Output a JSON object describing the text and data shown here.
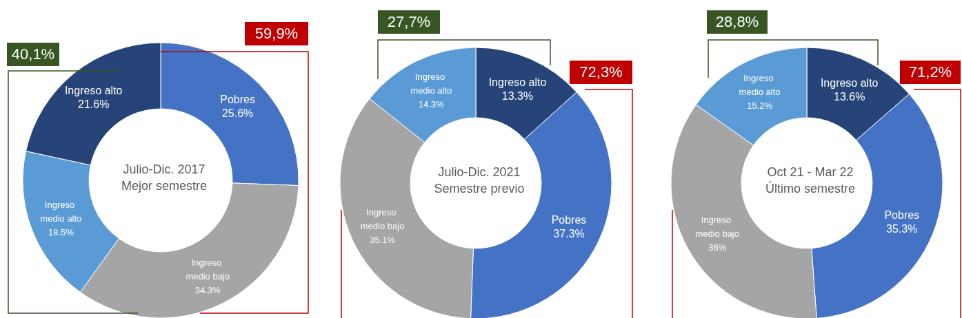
{
  "chart_data": [
    {
      "type": "donut",
      "title": "Julio-Dic. 2017",
      "subtitle": "Mejor semestre",
      "categories": [
        "Pobres",
        "Ingreso medio bajo",
        "Ingreso medio alto",
        "Ingreso alto"
      ],
      "values": [
        25.6,
        34.3,
        18.5,
        21.6
      ],
      "value_labels": [
        "25.6%",
        "34.3%",
        "18.5%",
        "21.6%"
      ],
      "colors": [
        "#4472c4",
        "#a5a5a5",
        "#5b9bd5",
        "#264478"
      ],
      "legend": false,
      "annotations": [
        "40,1%",
        "59,9%"
      ]
    },
    {
      "type": "donut",
      "title": "Julio-Dic. 2021",
      "subtitle": "Semestre previo",
      "categories": [
        "Ingreso alto",
        "Pobres",
        "Ingreso medio bajo",
        "Ingreso medio alto"
      ],
      "values": [
        13.3,
        37.3,
        35.1,
        14.3
      ],
      "value_labels": [
        "13.3%",
        "37.3%",
        "35.1%",
        "14.3%"
      ],
      "colors": [
        "#264478",
        "#4472c4",
        "#a5a5a5",
        "#5b9bd5"
      ],
      "legend": false,
      "annotations": [
        "27,7%",
        "72,3%"
      ]
    },
    {
      "type": "donut",
      "title": "Oct 21 - Mar 22",
      "subtitle": "Último semestre",
      "categories": [
        "Ingreso alto",
        "Pobres",
        "Ingreso medio bajo",
        "Ingreso medio alto"
      ],
      "values": [
        13.6,
        35.3,
        36,
        15.2
      ],
      "value_labels": [
        "13.6%",
        "35.3%",
        "36%",
        "15.2%"
      ],
      "colors": [
        "#264478",
        "#4472c4",
        "#a5a5a5",
        "#5b9bd5"
      ],
      "legend": false,
      "annotations": [
        "28,8%",
        "71,2%"
      ]
    }
  ]
}
